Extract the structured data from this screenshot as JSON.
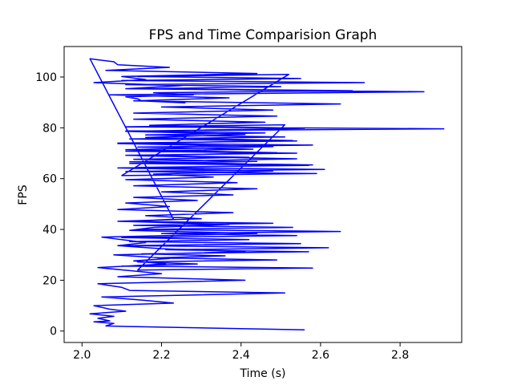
{
  "chart_data": {
    "type": "line",
    "title": "FPS and Time Comparision Graph",
    "xlabel": "Time (s)",
    "ylabel": "FPS",
    "xlim": [
      1.955,
      2.955
    ],
    "ylim": [
      -4.5,
      112
    ],
    "xticks": [
      2.0,
      2.2,
      2.4,
      2.6,
      2.8
    ],
    "xtick_labels": [
      "2.0",
      "2.2",
      "2.4",
      "2.6",
      "2.8"
    ],
    "yticks": [
      0,
      20,
      40,
      60,
      80,
      100
    ],
    "ytick_labels": [
      "0",
      "20",
      "40",
      "60",
      "80",
      "100"
    ],
    "grid": false,
    "legend": "none",
    "series": [
      {
        "color": "#0000ff",
        "x": [
          2.56,
          2.11,
          2.06,
          2.08,
          2.03,
          2.07,
          2.04,
          2.08,
          2.02,
          2.11,
          2.07,
          2.03,
          2.23,
          2.15,
          2.05,
          2.51,
          2.12,
          2.1,
          2.04,
          2.41,
          2.09,
          2.2,
          2.12,
          2.04,
          2.21,
          2.13,
          2.22,
          2.08,
          2.41,
          2.2,
          2.09,
          2.16,
          2.1,
          2.05,
          2.44,
          2.12,
          2.18,
          2.37,
          2.09,
          2.3,
          2.16,
          2.38,
          2.09,
          2.22,
          2.11,
          2.29,
          2.13,
          2.38,
          2.2,
          2.44,
          2.13,
          2.39,
          2.11,
          2.33,
          2.18,
          2.48,
          2.09,
          2.58,
          2.12,
          2.54,
          2.14,
          2.49,
          2.11,
          2.48,
          2.09,
          2.53,
          2.16,
          2.41,
          2.11,
          2.56,
          2.17,
          2.46,
          2.13,
          2.49,
          2.13,
          2.48,
          2.2,
          2.65,
          2.13,
          2.37,
          2.07,
          2.86,
          2.11,
          2.25,
          2.03,
          2.16,
          2.1,
          2.44,
          2.06,
          2.22,
          2.09,
          2.08,
          2.02,
          2.23,
          2.12,
          2.48,
          2.13,
          2.53,
          2.14,
          2.65,
          2.2,
          2.54,
          2.1,
          2.42,
          2.12,
          2.55,
          2.11,
          2.62,
          2.21,
          2.57,
          2.15,
          2.36,
          2.19,
          2.49,
          2.14,
          2.29,
          2.1,
          2.58,
          2.14,
          2.51,
          2.11,
          2.91,
          2.11,
          2.46,
          2.16,
          2.51,
          2.12,
          2.54,
          2.09,
          2.58,
          2.14,
          2.43,
          2.11,
          2.54,
          2.11,
          2.42,
          2.13,
          2.44,
          2.12,
          2.57,
          2.14,
          2.61,
          2.11,
          2.59,
          2.1,
          2.52,
          2.14,
          2.55,
          2.1,
          2.71,
          2.11,
          2.5,
          2.16,
          2.68,
          2.18,
          2.28,
          2.11,
          2.14,
          2.15,
          2.26
        ],
        "y": [
          0.5,
          1.8,
          2.0,
          3.0,
          3.6,
          4.0,
          5.0,
          5.8,
          6.8,
          7.8,
          8.6,
          10.0,
          11.0,
          12.2,
          13.4,
          15.0,
          16.0,
          17.2,
          18.6,
          20.0,
          21.4,
          22.6,
          23.8,
          25.0,
          26.4,
          27.6,
          28.6,
          30.0,
          31.2,
          32.4,
          33.6,
          34.8,
          36.0,
          37.0,
          38.4,
          39.6,
          40.8,
          42.0,
          43.2,
          44.2,
          45.4,
          46.6,
          47.8,
          49.0,
          50.4,
          51.4,
          52.6,
          53.6,
          54.8,
          56.0,
          57.2,
          58.4,
          59.6,
          60.6,
          61.8,
          63.0,
          64.2,
          65.4,
          66.6,
          67.8,
          69.0,
          70.2,
          71.4,
          72.6,
          73.8,
          75.0,
          76.2,
          77.4,
          78.6,
          79.8,
          81.0,
          82.2,
          83.4,
          84.6,
          85.8,
          87.0,
          88.2,
          89.4,
          90.6,
          91.8,
          93.0,
          94.2,
          95.4,
          96.6,
          97.8,
          99.0,
          100.2,
          101.4,
          102.6,
          103.8,
          104.8,
          106.0,
          107.2,
          44.0,
          43.2,
          42.4,
          41.6,
          40.8,
          40.0,
          39.2,
          38.4,
          37.6,
          36.8,
          36.0,
          35.2,
          34.4,
          33.6,
          32.8,
          32.0,
          31.2,
          30.4,
          29.6,
          28.8,
          28.0,
          27.2,
          26.4,
          25.6,
          24.8,
          24.0,
          81.2,
          80.4,
          79.6,
          78.8,
          78.0,
          77.2,
          76.4,
          75.6,
          74.8,
          74.0,
          73.2,
          72.4,
          71.6,
          70.8,
          70.0,
          69.2,
          68.4,
          67.6,
          66.8,
          66.0,
          65.2,
          64.4,
          63.6,
          62.8,
          62.0,
          61.2,
          101.0,
          100.2,
          99.4,
          98.6,
          97.8,
          97.0,
          96.2,
          95.4,
          94.6,
          93.8,
          93.0,
          92.2,
          91.4,
          90.6,
          89.8
        ]
      }
    ]
  }
}
